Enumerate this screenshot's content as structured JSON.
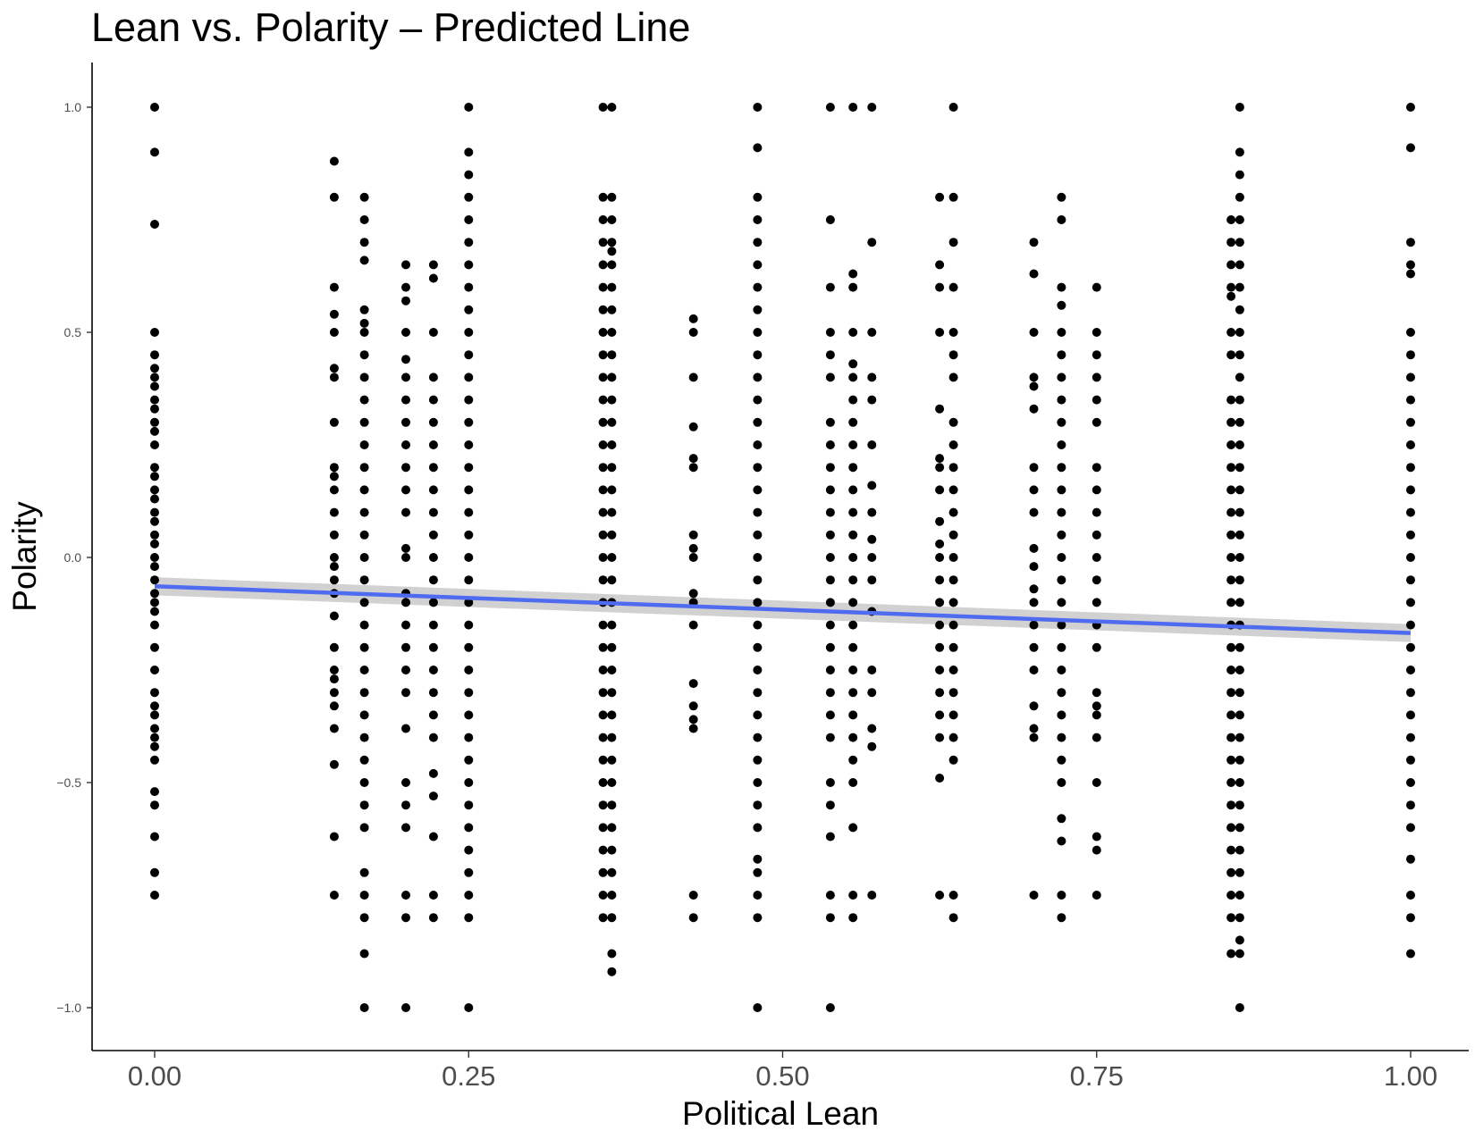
{
  "chart_data": {
    "type": "scatter",
    "title": "Lean vs. Polarity – Predicted Line",
    "xlabel": "Political Lean",
    "ylabel": "Polarity",
    "xlim": [
      -0.05,
      1.05
    ],
    "ylim": [
      -1.1,
      1.1
    ],
    "xticks": [
      0,
      0.25,
      0.5,
      0.75,
      1
    ],
    "xtick_labels": [
      "0.00",
      "0.25",
      "0.50",
      "0.75",
      "1.00"
    ],
    "yticks": [
      -1,
      -0.5,
      0,
      0.5,
      1
    ],
    "ytick_labels": [
      "−1.0",
      "−0.5",
      "0.0",
      "0.5",
      "1.0"
    ],
    "grid": false,
    "point_color": "#000000",
    "fit_line": {
      "color": "#4F6CF0",
      "band_color": "#BEBEBE",
      "x": [
        0,
        1
      ],
      "y": [
        -0.064,
        -0.168
      ],
      "se": [
        0.02,
        0.02
      ]
    },
    "columns": [
      {
        "x": 0.0,
        "y": [
          1.0,
          0.9,
          0.74,
          0.5,
          0.45,
          0.42,
          0.4,
          0.38,
          0.35,
          0.33,
          0.3,
          0.28,
          0.25,
          0.2,
          0.18,
          0.15,
          0.13,
          0.1,
          0.08,
          0.05,
          0.03,
          0.0,
          -0.02,
          -0.05,
          -0.08,
          -0.1,
          -0.12,
          -0.15,
          -0.2,
          -0.25,
          -0.3,
          -0.33,
          -0.35,
          -0.38,
          -0.4,
          -0.42,
          -0.45,
          -0.52,
          -0.55,
          -0.62,
          -0.7,
          -0.75
        ]
      },
      {
        "x": 0.143,
        "y": [
          0.88,
          0.8,
          0.6,
          0.54,
          0.5,
          0.42,
          0.4,
          0.3,
          0.2,
          0.18,
          0.15,
          0.1,
          0.05,
          0.0,
          -0.02,
          -0.05,
          -0.08,
          -0.13,
          -0.2,
          -0.25,
          -0.27,
          -0.3,
          -0.33,
          -0.38,
          -0.46,
          -0.62,
          -0.75
        ]
      },
      {
        "x": 0.167,
        "y": [
          0.8,
          0.75,
          0.7,
          0.66,
          0.55,
          0.52,
          0.5,
          0.45,
          0.4,
          0.35,
          0.3,
          0.25,
          0.2,
          0.15,
          0.1,
          0.05,
          0.0,
          -0.05,
          -0.1,
          -0.15,
          -0.2,
          -0.25,
          -0.3,
          -0.35,
          -0.4,
          -0.45,
          -0.5,
          -0.55,
          -0.6,
          -0.7,
          -0.75,
          -0.8,
          -0.88,
          -1.0
        ]
      },
      {
        "x": 0.2,
        "y": [
          0.65,
          0.6,
          0.57,
          0.5,
          0.44,
          0.4,
          0.35,
          0.3,
          0.25,
          0.2,
          0.15,
          0.1,
          0.02,
          0.0,
          -0.08,
          -0.1,
          -0.15,
          -0.2,
          -0.25,
          -0.3,
          -0.38,
          -0.5,
          -0.55,
          -0.6,
          -0.75,
          -0.8,
          -1.0
        ]
      },
      {
        "x": 0.222,
        "y": [
          0.65,
          0.62,
          0.5,
          0.4,
          0.35,
          0.3,
          0.25,
          0.2,
          0.15,
          0.1,
          0.05,
          0.0,
          -0.05,
          -0.1,
          -0.15,
          -0.2,
          -0.25,
          -0.3,
          -0.35,
          -0.4,
          -0.48,
          -0.53,
          -0.62,
          -0.75,
          -0.8
        ]
      },
      {
        "x": 0.25,
        "y": [
          1.0,
          0.9,
          0.85,
          0.8,
          0.75,
          0.7,
          0.65,
          0.6,
          0.55,
          0.5,
          0.45,
          0.4,
          0.35,
          0.3,
          0.25,
          0.2,
          0.15,
          0.1,
          0.05,
          0.0,
          -0.05,
          -0.1,
          -0.15,
          -0.2,
          -0.25,
          -0.3,
          -0.35,
          -0.4,
          -0.45,
          -0.5,
          -0.55,
          -0.6,
          -0.65,
          -0.7,
          -0.75,
          -0.8,
          -1.0
        ]
      },
      {
        "x": 0.357,
        "y": [
          1.0,
          0.8,
          0.75,
          0.7,
          0.65,
          0.6,
          0.55,
          0.5,
          0.45,
          0.4,
          0.35,
          0.3,
          0.25,
          0.2,
          0.15,
          0.1,
          0.05,
          0.0,
          -0.05,
          -0.1,
          -0.15,
          -0.2,
          -0.25,
          -0.3,
          -0.35,
          -0.4,
          -0.45,
          -0.5,
          -0.55,
          -0.6,
          -0.65,
          -0.7,
          -0.75,
          -0.8
        ]
      },
      {
        "x": 0.364,
        "y": [
          1.0,
          0.8,
          0.75,
          0.7,
          0.68,
          0.65,
          0.6,
          0.55,
          0.5,
          0.45,
          0.4,
          0.35,
          0.3,
          0.25,
          0.2,
          0.15,
          0.1,
          0.05,
          0.0,
          -0.05,
          -0.1,
          -0.15,
          -0.2,
          -0.25,
          -0.3,
          -0.35,
          -0.4,
          -0.45,
          -0.5,
          -0.55,
          -0.6,
          -0.65,
          -0.7,
          -0.75,
          -0.8,
          -0.88,
          -0.92
        ]
      },
      {
        "x": 0.429,
        "y": [
          0.53,
          0.5,
          0.4,
          0.29,
          0.22,
          0.2,
          0.05,
          0.02,
          0.0,
          -0.08,
          -0.1,
          -0.15,
          -0.28,
          -0.33,
          -0.36,
          -0.38,
          -0.75,
          -0.8
        ]
      },
      {
        "x": 0.48,
        "y": [
          1.0,
          0.91,
          0.8,
          0.75,
          0.7,
          0.65,
          0.6,
          0.55,
          0.5,
          0.45,
          0.4,
          0.35,
          0.3,
          0.25,
          0.2,
          0.15,
          0.1,
          0.05,
          0.0,
          -0.05,
          -0.1,
          -0.15,
          -0.2,
          -0.25,
          -0.3,
          -0.35,
          -0.4,
          -0.45,
          -0.5,
          -0.55,
          -0.6,
          -0.67,
          -0.7,
          -0.75,
          -0.8,
          -1.0
        ]
      },
      {
        "x": 0.538,
        "y": [
          1.0,
          0.75,
          0.6,
          0.5,
          0.45,
          0.4,
          0.3,
          0.25,
          0.2,
          0.15,
          0.1,
          0.05,
          0.0,
          -0.05,
          -0.1,
          -0.15,
          -0.2,
          -0.25,
          -0.3,
          -0.35,
          -0.4,
          -0.5,
          -0.55,
          -0.62,
          -0.75,
          -0.8,
          -1.0
        ]
      },
      {
        "x": 0.556,
        "y": [
          1.0,
          0.63,
          0.6,
          0.5,
          0.43,
          0.4,
          0.35,
          0.3,
          0.25,
          0.2,
          0.15,
          0.1,
          0.05,
          0.0,
          -0.05,
          -0.1,
          -0.15,
          -0.2,
          -0.25,
          -0.3,
          -0.35,
          -0.4,
          -0.45,
          -0.5,
          -0.6,
          -0.75,
          -0.8
        ]
      },
      {
        "x": 0.571,
        "y": [
          1.0,
          0.7,
          0.5,
          0.4,
          0.35,
          0.25,
          0.16,
          0.1,
          0.04,
          0.0,
          -0.05,
          -0.12,
          -0.25,
          -0.3,
          -0.38,
          -0.42,
          -0.75
        ]
      },
      {
        "x": 0.625,
        "y": [
          0.8,
          0.65,
          0.6,
          0.5,
          0.33,
          0.22,
          0.2,
          0.15,
          0.08,
          0.03,
          0.0,
          -0.05,
          -0.1,
          -0.15,
          -0.2,
          -0.25,
          -0.3,
          -0.35,
          -0.4,
          -0.49,
          -0.75
        ]
      },
      {
        "x": 0.636,
        "y": [
          1.0,
          0.8,
          0.7,
          0.6,
          0.5,
          0.45,
          0.4,
          0.3,
          0.25,
          0.2,
          0.15,
          0.1,
          0.05,
          0.0,
          -0.05,
          -0.1,
          -0.15,
          -0.2,
          -0.25,
          -0.3,
          -0.35,
          -0.4,
          -0.45,
          -0.75,
          -0.8
        ]
      },
      {
        "x": 0.7,
        "y": [
          0.7,
          0.63,
          0.5,
          0.4,
          0.38,
          0.33,
          0.2,
          0.15,
          0.1,
          0.02,
          -0.02,
          -0.07,
          -0.1,
          -0.15,
          -0.2,
          -0.25,
          -0.33,
          -0.38,
          -0.4,
          -0.75
        ]
      },
      {
        "x": 0.722,
        "y": [
          0.8,
          0.75,
          0.6,
          0.56,
          0.5,
          0.45,
          0.4,
          0.35,
          0.3,
          0.25,
          0.2,
          0.15,
          0.1,
          0.05,
          0.0,
          -0.05,
          -0.1,
          -0.15,
          -0.2,
          -0.25,
          -0.3,
          -0.35,
          -0.4,
          -0.45,
          -0.5,
          -0.58,
          -0.63,
          -0.75,
          -0.8
        ]
      },
      {
        "x": 0.75,
        "y": [
          0.6,
          0.5,
          0.45,
          0.4,
          0.35,
          0.3,
          0.2,
          0.15,
          0.1,
          0.05,
          0.0,
          -0.05,
          -0.1,
          -0.15,
          -0.2,
          -0.3,
          -0.33,
          -0.35,
          -0.4,
          -0.5,
          -0.62,
          -0.65,
          -0.75
        ]
      },
      {
        "x": 0.857,
        "y": [
          0.75,
          0.7,
          0.65,
          0.6,
          0.58,
          0.5,
          0.45,
          0.35,
          0.3,
          0.25,
          0.2,
          0.15,
          0.1,
          0.05,
          0.0,
          -0.05,
          -0.1,
          -0.15,
          -0.2,
          -0.25,
          -0.3,
          -0.35,
          -0.4,
          -0.45,
          -0.5,
          -0.55,
          -0.6,
          -0.65,
          -0.7,
          -0.75,
          -0.8,
          -0.88
        ]
      },
      {
        "x": 0.864,
        "y": [
          1.0,
          0.9,
          0.85,
          0.8,
          0.75,
          0.7,
          0.65,
          0.6,
          0.55,
          0.5,
          0.45,
          0.4,
          0.35,
          0.3,
          0.25,
          0.2,
          0.15,
          0.1,
          0.05,
          0.0,
          -0.05,
          -0.1,
          -0.15,
          -0.2,
          -0.25,
          -0.3,
          -0.35,
          -0.4,
          -0.45,
          -0.5,
          -0.55,
          -0.6,
          -0.65,
          -0.7,
          -0.75,
          -0.8,
          -0.85,
          -0.88,
          -1.0
        ]
      },
      {
        "x": 1.0,
        "y": [
          1.0,
          0.91,
          0.7,
          0.65,
          0.63,
          0.5,
          0.45,
          0.4,
          0.35,
          0.3,
          0.25,
          0.2,
          0.15,
          0.1,
          0.05,
          0.0,
          -0.05,
          -0.1,
          -0.15,
          -0.2,
          -0.25,
          -0.3,
          -0.35,
          -0.4,
          -0.45,
          -0.5,
          -0.55,
          -0.6,
          -0.67,
          -0.75,
          -0.8,
          -0.88
        ]
      }
    ]
  }
}
